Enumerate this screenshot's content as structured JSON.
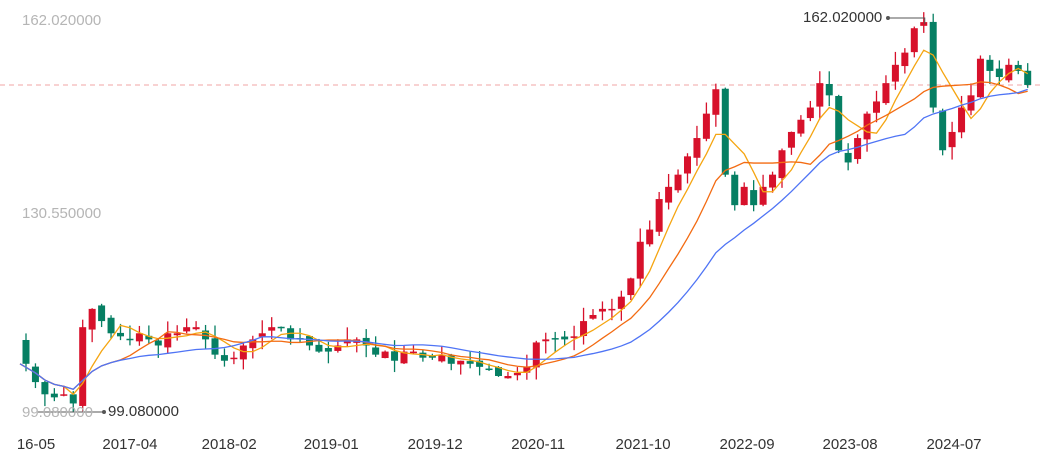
{
  "chart_data": {
    "type": "candlestick",
    "y_axis_labels": [
      "162.020000",
      "130.550000",
      "99.080000"
    ],
    "ylim": [
      99.08,
      162.02
    ],
    "max_marker": "162.020000",
    "min_marker": "99.080000",
    "current_price_line": 151.7,
    "x_tick_labels": [
      {
        "label": "16-05",
        "index": 1
      },
      {
        "label": "2017-04",
        "index": 11
      },
      {
        "label": "2018-02",
        "index": 21.5
      },
      {
        "label": "2019-01",
        "index": 32.3
      },
      {
        "label": "2019-12",
        "index": 43.3
      },
      {
        "label": "2020-11",
        "index": 54.2
      },
      {
        "label": "2021-10",
        "index": 65.3
      },
      {
        "label": "2022-09",
        "index": 76.3
      },
      {
        "label": "2023-08",
        "index": 87.2
      },
      {
        "label": "2024-07",
        "index": 98.2
      }
    ],
    "closes": [
      106,
      103,
      101,
      100.5,
      101,
      99.5,
      112,
      115,
      113,
      111,
      110.5,
      110,
      111,
      110,
      109,
      111,
      111,
      112,
      112,
      110,
      107.5,
      106.5,
      107,
      109,
      110,
      111,
      112,
      112,
      110,
      110,
      109,
      108,
      108,
      109,
      110,
      110,
      109,
      107.5,
      108,
      106.5,
      108,
      108,
      107,
      107,
      107.5,
      106,
      106.5,
      106,
      105.5,
      105,
      104,
      104,
      104.5,
      105.5,
      109.5,
      110,
      110,
      110,
      110.5,
      113,
      114,
      115,
      115,
      117,
      120,
      126,
      128,
      133,
      135,
      137,
      140,
      143,
      147,
      151,
      137,
      132,
      135,
      132,
      135,
      137,
      141,
      144,
      146,
      148,
      152,
      150,
      141,
      139,
      143,
      147,
      149,
      152,
      155,
      157,
      161,
      162,
      148,
      141,
      144,
      148,
      150,
      156,
      154,
      153,
      155,
      154,
      151.7
    ],
    "colors": {
      "up": "#d7112b",
      "down": "#067f63",
      "ma5": "#f5a511",
      "ma10": "#f36b12",
      "ma20": "#4f74f5",
      "price_line": "#f2a4a4"
    }
  }
}
